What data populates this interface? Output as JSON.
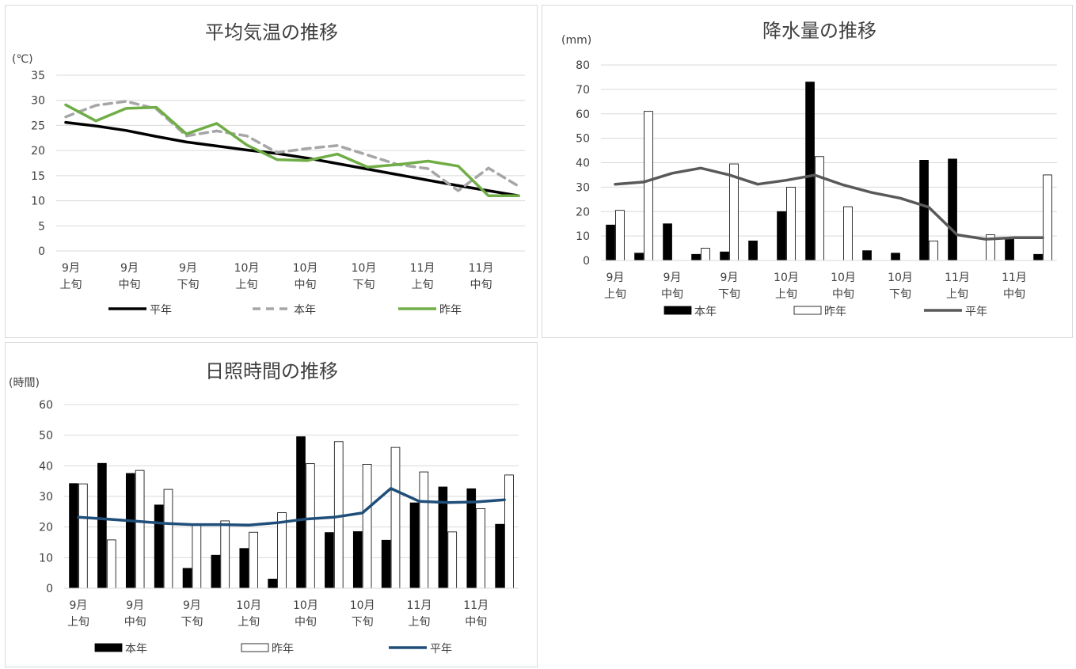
{
  "chart_data": [
    {
      "type": "line",
      "title": "平均気温の推移",
      "ylabel": "(℃)",
      "ylim": [
        0,
        35
      ],
      "yticks": [
        0,
        5,
        10,
        15,
        20,
        25,
        30,
        35
      ],
      "grid": true,
      "legend_position": "bottom",
      "x_tick_labels": [
        {
          "line1": "9月",
          "line2": "上旬"
        },
        {
          "line1": "9月",
          "line2": "中旬"
        },
        {
          "line1": "9月",
          "line2": "下旬"
        },
        {
          "line1": "10月",
          "line2": "上旬"
        },
        {
          "line1": "10月",
          "line2": "中旬"
        },
        {
          "line1": "10月",
          "line2": "下旬"
        },
        {
          "line1": "11月",
          "line2": "上旬"
        },
        {
          "line1": "11月",
          "line2": "中旬"
        }
      ],
      "series": [
        {
          "name": "平年",
          "style": "solid",
          "color": "#000000",
          "values": [
            25.6,
            24.9,
            24.0,
            22.8,
            21.7,
            20.9,
            20.1,
            19.4,
            18.5,
            17.4,
            16.3,
            15.2,
            14.1,
            13.0,
            12.0,
            11.0
          ]
        },
        {
          "name": "本年",
          "style": "dashed",
          "color": "#a6a6a6",
          "values": [
            26.7,
            29.0,
            29.8,
            28.3,
            22.9,
            23.9,
            22.9,
            19.6,
            20.4,
            21.0,
            19.1,
            17.2,
            16.4,
            12.0,
            16.5,
            12.9
          ]
        },
        {
          "name": "昨年",
          "style": "solid",
          "color": "#70ad47",
          "values": [
            29.1,
            25.9,
            28.4,
            28.6,
            23.3,
            25.4,
            21.1,
            18.2,
            18.0,
            19.3,
            16.7,
            17.2,
            17.9,
            16.9,
            11.0,
            11.0
          ]
        }
      ]
    },
    {
      "type": "bar",
      "title": "降水量の推移",
      "ylabel": "(mm)",
      "ylim": [
        0,
        80
      ],
      "yticks": [
        0,
        10,
        20,
        30,
        40,
        50,
        60,
        70,
        80
      ],
      "grid": true,
      "legend_position": "bottom",
      "x_tick_labels": [
        {
          "line1": "9月",
          "line2": "上旬"
        },
        {
          "line1": "9月",
          "line2": "中旬"
        },
        {
          "line1": "9月",
          "line2": "下旬"
        },
        {
          "line1": "10月",
          "line2": "上旬"
        },
        {
          "line1": "10月",
          "line2": "中旬"
        },
        {
          "line1": "10月",
          "line2": "下旬"
        },
        {
          "line1": "11月",
          "line2": "上旬"
        },
        {
          "line1": "11月",
          "line2": "中旬"
        }
      ],
      "series": [
        {
          "name": "本年",
          "type": "bar",
          "color": "#000000",
          "values": [
            14.5,
            3.0,
            15.0,
            2.5,
            3.5,
            8.0,
            20.0,
            73.0,
            0,
            4.0,
            3.0,
            41.0,
            41.5,
            0,
            9.0,
            2.5
          ]
        },
        {
          "name": "昨年",
          "type": "bar",
          "color": "#ffffff",
          "values": [
            20.5,
            61.0,
            0,
            5.0,
            39.5,
            0,
            30.0,
            42.5,
            22.0,
            0,
            0,
            8.0,
            0,
            10.5,
            0,
            35.0
          ]
        },
        {
          "name": "平年",
          "type": "line",
          "color": "#595959",
          "values": [
            31.2,
            32.1,
            35.7,
            37.8,
            35.0,
            31.2,
            32.8,
            34.9,
            30.9,
            27.8,
            25.5,
            21.8,
            10.5,
            8.7,
            9.3,
            9.3
          ]
        }
      ]
    },
    {
      "type": "bar",
      "title": "日照時間の推移",
      "ylabel": "(時間)",
      "ylim": [
        0,
        60
      ],
      "yticks": [
        0,
        10,
        20,
        30,
        40,
        50,
        60
      ],
      "grid": true,
      "legend_position": "bottom",
      "x_tick_labels": [
        {
          "line1": "9月",
          "line2": "上旬"
        },
        {
          "line1": "9月",
          "line2": "中旬"
        },
        {
          "line1": "9月",
          "line2": "下旬"
        },
        {
          "line1": "10月",
          "line2": "上旬"
        },
        {
          "line1": "10月",
          "line2": "中旬"
        },
        {
          "line1": "10月",
          "line2": "下旬"
        },
        {
          "line1": "11月",
          "line2": "上旬"
        },
        {
          "line1": "11月",
          "line2": "中旬"
        }
      ],
      "series": [
        {
          "name": "本年",
          "type": "bar",
          "color": "#000000",
          "values": [
            34.2,
            40.8,
            37.5,
            27.2,
            6.5,
            10.8,
            13.0,
            3.0,
            49.5,
            18.2,
            18.5,
            15.7,
            27.9,
            33.1,
            32.5,
            20.9
          ]
        },
        {
          "name": "昨年",
          "type": "bar",
          "color": "#ffffff",
          "values": [
            34.1,
            15.8,
            38.5,
            32.3,
            20.5,
            22.0,
            18.3,
            24.7,
            40.7,
            47.9,
            40.5,
            46.0,
            38.0,
            18.4,
            26.0,
            37.0
          ]
        },
        {
          "name": "平年",
          "type": "line",
          "color": "#1f4e79",
          "values": [
            23.2,
            22.6,
            21.9,
            21.2,
            20.8,
            20.8,
            20.6,
            21.4,
            22.6,
            23.2,
            24.6,
            32.6,
            28.4,
            28.0,
            28.2,
            28.9
          ]
        }
      ]
    }
  ]
}
